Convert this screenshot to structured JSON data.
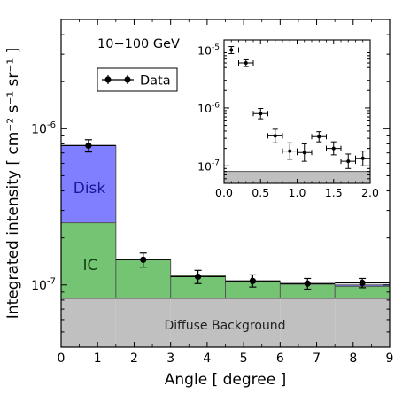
{
  "chart_data": [
    {
      "type": "bar",
      "annotation": "10−100 GeV",
      "xlabel": "Angle [ degree ]",
      "ylabel": "Integrated intensity [ cm⁻² s⁻¹ sr⁻¹ ]",
      "xlim": [
        0,
        9
      ],
      "ylim": [
        4e-08,
        5e-06
      ],
      "yscale": "log",
      "x_ticks": [
        "0",
        "1",
        "2",
        "3",
        "4",
        "5",
        "6",
        "7",
        "8",
        "9"
      ],
      "y_ticks": [
        {
          "value": 1e-07,
          "base": "10",
          "exp": "-7"
        },
        {
          "value": 1e-06,
          "base": "10",
          "exp": "-6"
        }
      ],
      "legend": {
        "label": "Data",
        "placement": "top-left"
      },
      "bins": [
        {
          "x0": 0.0,
          "x1": 1.5,
          "background": 8.2e-08,
          "ic": 2.5e-07,
          "total": 7.8e-07
        },
        {
          "x0": 1.5,
          "x1": 3.0,
          "background": 8.2e-08,
          "ic": 1.45e-07,
          "total": 1.45e-07
        },
        {
          "x0": 3.0,
          "x1": 4.5,
          "background": 8.2e-08,
          "ic": 1.15e-07,
          "total": 1.15e-07
        },
        {
          "x0": 4.5,
          "x1": 6.0,
          "background": 8.2e-08,
          "ic": 1.06e-07,
          "total": 1.06e-07
        },
        {
          "x0": 6.0,
          "x1": 7.5,
          "background": 8.2e-08,
          "ic": 1.01e-07,
          "total": 1.01e-07
        },
        {
          "x0": 7.5,
          "x1": 9.0,
          "background": 8.2e-08,
          "ic": 9.8e-08,
          "total": 1e-07
        }
      ],
      "series": [
        {
          "name": "Diffuse Background",
          "color": "#c0c0c0"
        },
        {
          "name": "IC",
          "color": "#74c474"
        },
        {
          "name": "Disk",
          "color": "#7f7fff"
        },
        {
          "name": "Data",
          "color": "#000000"
        }
      ],
      "data_points": [
        {
          "x": 0.75,
          "xerr": 0.75,
          "y": 7.8e-07,
          "ylo": 7.1e-07,
          "yhi": 8.5e-07
        },
        {
          "x": 2.25,
          "xerr": 0.75,
          "y": 1.45e-07,
          "ylo": 1.3e-07,
          "yhi": 1.6e-07
        },
        {
          "x": 3.75,
          "xerr": 0.75,
          "y": 1.13e-07,
          "ylo": 1.02e-07,
          "yhi": 1.24e-07
        },
        {
          "x": 5.25,
          "xerr": 0.75,
          "y": 1.06e-07,
          "ylo": 9.7e-08,
          "yhi": 1.16e-07
        },
        {
          "x": 6.75,
          "xerr": 0.75,
          "y": 1.02e-07,
          "ylo": 9.4e-08,
          "yhi": 1.1e-07
        },
        {
          "x": 8.25,
          "xerr": 0.75,
          "y": 1.03e-07,
          "ylo": 9.6e-08,
          "yhi": 1.1e-07
        }
      ],
      "region_labels": {
        "disk": "Disk",
        "ic": "IC",
        "background": "Diffuse Background"
      }
    },
    {
      "type": "scatter",
      "inset": true,
      "xlim": [
        0,
        2.0
      ],
      "ylim": [
        5e-08,
        1.5e-05
      ],
      "yscale": "log",
      "x_ticks": [
        "0.0",
        "0.5",
        "1.0",
        "1.5",
        "2.0"
      ],
      "y_ticks": [
        {
          "value": 1e-07,
          "base": "10",
          "exp": "-7"
        },
        {
          "value": 1e-06,
          "base": "10",
          "exp": "-6"
        },
        {
          "value": 1e-05,
          "base": "10",
          "exp": "-5"
        }
      ],
      "background_level": 8e-08,
      "data_points": [
        {
          "x": 0.1,
          "xerr": 0.1,
          "y": 1e-05,
          "ylo": 8.7e-06,
          "yhi": 1.15e-05
        },
        {
          "x": 0.3,
          "xerr": 0.1,
          "y": 6e-06,
          "ylo": 5.2e-06,
          "yhi": 6.8e-06
        },
        {
          "x": 0.5,
          "xerr": 0.1,
          "y": 8e-07,
          "ylo": 6.5e-07,
          "yhi": 9.8e-07
        },
        {
          "x": 0.7,
          "xerr": 0.1,
          "y": 3.3e-07,
          "ylo": 2.5e-07,
          "yhi": 4.3e-07
        },
        {
          "x": 0.9,
          "xerr": 0.1,
          "y": 1.8e-07,
          "ylo": 1.3e-07,
          "yhi": 2.5e-07
        },
        {
          "x": 1.1,
          "xerr": 0.1,
          "y": 1.7e-07,
          "ylo": 1.2e-07,
          "yhi": 2.4e-07
        },
        {
          "x": 1.3,
          "xerr": 0.1,
          "y": 3.2e-07,
          "ylo": 2.6e-07,
          "yhi": 3.9e-07
        },
        {
          "x": 1.5,
          "xerr": 0.1,
          "y": 2e-07,
          "ylo": 1.55e-07,
          "yhi": 2.6e-07
        },
        {
          "x": 1.7,
          "xerr": 0.1,
          "y": 1.2e-07,
          "ylo": 9e-08,
          "yhi": 1.6e-07
        },
        {
          "x": 1.9,
          "xerr": 0.1,
          "y": 1.35e-07,
          "ylo": 1e-07,
          "yhi": 1.8e-07
        }
      ]
    }
  ]
}
